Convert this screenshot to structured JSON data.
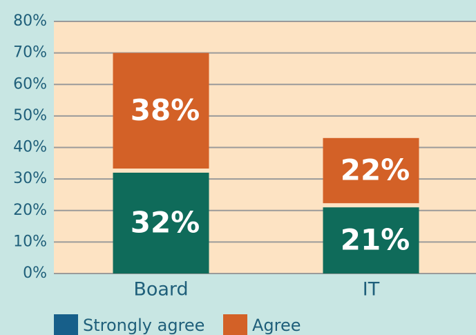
{
  "chart_data": {
    "type": "stacked_bar",
    "categories": [
      "Board",
      "IT"
    ],
    "series": [
      {
        "name": "Strongly agree",
        "color": "#0f6b5a",
        "legend_color": "#175f8a",
        "values": [
          32,
          21
        ],
        "value_labels": [
          "32%",
          "21%"
        ]
      },
      {
        "name": "Agree",
        "color": "#d36127",
        "legend_color": "#d36127",
        "values": [
          38,
          22
        ],
        "value_labels": [
          "38%",
          "22%"
        ]
      }
    ],
    "ylim": [
      0,
      80
    ],
    "yticks": [
      {
        "value": 0,
        "label": "0%"
      },
      {
        "value": 10,
        "label": "10%"
      },
      {
        "value": 20,
        "label": "20%"
      },
      {
        "value": 30,
        "label": "30%"
      },
      {
        "value": 40,
        "label": "40%"
      },
      {
        "value": 50,
        "label": "50%"
      },
      {
        "value": 60,
        "label": "60%"
      },
      {
        "value": 70,
        "label": "70%"
      },
      {
        "value": 80,
        "label": "80%"
      }
    ],
    "grid": true
  }
}
